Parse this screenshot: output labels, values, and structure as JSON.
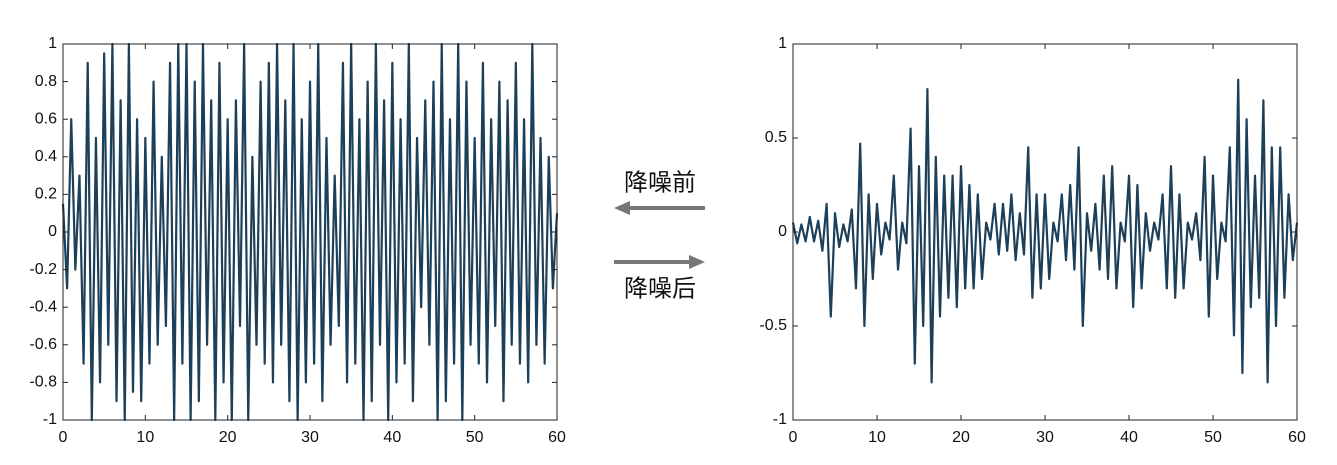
{
  "chart_data": [
    {
      "type": "line",
      "color": "#1c3f5a",
      "x": [
        0,
        0.5,
        1,
        1.5,
        2,
        2.5,
        3,
        3.5,
        4,
        4.5,
        5,
        5.5,
        6,
        6.5,
        7,
        7.5,
        8,
        8.5,
        9,
        9.5,
        10,
        10.5,
        11,
        11.5,
        12,
        12.5,
        13,
        13.5,
        14,
        14.5,
        15,
        15.5,
        16,
        16.5,
        17,
        17.5,
        18,
        18.5,
        19,
        19.5,
        20,
        20.5,
        21,
        21.5,
        22,
        22.5,
        23,
        23.5,
        24,
        24.5,
        25,
        25.5,
        26,
        26.5,
        27,
        27.5,
        28,
        28.5,
        29,
        29.5,
        30,
        30.5,
        31,
        31.5,
        32,
        32.5,
        33,
        33.5,
        34,
        34.5,
        35,
        35.5,
        36,
        36.5,
        37,
        37.5,
        38,
        38.5,
        39,
        39.5,
        40,
        40.5,
        41,
        41.5,
        42,
        42.5,
        43,
        43.5,
        44,
        44.5,
        45,
        45.5,
        46,
        46.5,
        47,
        47.5,
        48,
        48.5,
        49,
        49.5,
        50,
        50.5,
        51,
        51.5,
        52,
        52.5,
        53,
        53.5,
        54,
        54.5,
        55,
        55.5,
        56,
        56.5,
        57,
        57.5,
        58,
        58.5,
        59,
        59.5,
        60
      ],
      "values": [
        0.15,
        -0.3,
        0.6,
        -0.2,
        0.3,
        -0.7,
        0.9,
        -1,
        0.5,
        -0.8,
        0.95,
        -0.6,
        1,
        -0.9,
        0.7,
        -1,
        1,
        -0.85,
        0.6,
        -0.9,
        0.5,
        -0.7,
        0.8,
        -0.6,
        0.4,
        -0.5,
        0.9,
        -1,
        1,
        -0.7,
        1,
        -1,
        0.8,
        -0.9,
        1,
        -0.6,
        0.7,
        -1,
        0.9,
        -0.8,
        0.6,
        -1,
        0.7,
        -0.5,
        1,
        -1,
        0.4,
        -0.6,
        0.8,
        -0.7,
        0.9,
        -0.8,
        1,
        -0.6,
        0.7,
        -0.9,
        1,
        -1,
        0.6,
        -0.8,
        0.8,
        -0.7,
        1,
        -0.9,
        0.5,
        -0.6,
        0.3,
        -0.5,
        0.9,
        -0.8,
        1,
        -0.7,
        0.6,
        -1,
        0.8,
        -0.9,
        1,
        -0.6,
        0.7,
        -1,
        0.9,
        -0.8,
        0.6,
        -0.7,
        1,
        -0.9,
        0.5,
        -0.4,
        0.7,
        -0.6,
        0.8,
        -1,
        1,
        -0.9,
        0.6,
        -0.7,
        1,
        -1,
        0.8,
        -0.6,
        0.5,
        -0.7,
        0.9,
        -0.8,
        0.6,
        -0.5,
        0.8,
        -0.9,
        0.7,
        -0.6,
        0.9,
        -0.7,
        0.6,
        -0.8,
        1,
        -0.6,
        0.5,
        -0.7,
        0.4,
        -0.3,
        0.1
      ],
      "xlim": [
        0,
        60
      ],
      "xticks": [
        0,
        10,
        20,
        30,
        40,
        50,
        60
      ],
      "ylim": [
        -1,
        1
      ],
      "yticks": [
        -1,
        -0.8,
        -0.6,
        -0.4,
        -0.2,
        0,
        0.2,
        0.4,
        0.6,
        0.8,
        1
      ]
    },
    {
      "type": "line",
      "color": "#1c3f5a",
      "x": [
        0,
        0.5,
        1,
        1.5,
        2,
        2.5,
        3,
        3.5,
        4,
        4.5,
        5,
        5.5,
        6,
        6.5,
        7,
        7.5,
        8,
        8.5,
        9,
        9.5,
        10,
        10.5,
        11,
        11.5,
        12,
        12.5,
        13,
        13.5,
        14,
        14.5,
        15,
        15.5,
        16,
        16.5,
        17,
        17.5,
        18,
        18.5,
        19,
        19.5,
        20,
        20.5,
        21,
        21.5,
        22,
        22.5,
        23,
        23.5,
        24,
        24.5,
        25,
        25.5,
        26,
        26.5,
        27,
        27.5,
        28,
        28.5,
        29,
        29.5,
        30,
        30.5,
        31,
        31.5,
        32,
        32.5,
        33,
        33.5,
        34,
        34.5,
        35,
        35.5,
        36,
        36.5,
        37,
        37.5,
        38,
        38.5,
        39,
        39.5,
        40,
        40.5,
        41,
        41.5,
        42,
        42.5,
        43,
        43.5,
        44,
        44.5,
        45,
        45.5,
        46,
        46.5,
        47,
        47.5,
        48,
        48.5,
        49,
        49.5,
        50,
        50.5,
        51,
        51.5,
        52,
        52.5,
        53,
        53.5,
        54,
        54.5,
        55,
        55.5,
        56,
        56.5,
        57,
        57.5,
        58,
        58.5,
        59,
        59.5,
        60
      ],
      "values": [
        0.05,
        -0.06,
        0.04,
        -0.05,
        0.08,
        -0.05,
        0.06,
        -0.1,
        0.15,
        -0.45,
        0.1,
        -0.08,
        0.04,
        -0.05,
        0.12,
        -0.3,
        0.47,
        -0.5,
        0.2,
        -0.25,
        0.15,
        -0.12,
        0.05,
        -0.04,
        0.3,
        -0.2,
        0.05,
        -0.06,
        0.55,
        -0.7,
        0.35,
        -0.5,
        0.76,
        -0.8,
        0.4,
        -0.45,
        0.3,
        -0.35,
        0.3,
        -0.4,
        0.35,
        -0.3,
        0.25,
        -0.3,
        0.2,
        -0.25,
        0.05,
        -0.04,
        0.15,
        -0.12,
        0.15,
        -0.1,
        0.2,
        -0.15,
        0.1,
        -0.12,
        0.45,
        -0.35,
        0.2,
        -0.3,
        0.2,
        -0.25,
        0.05,
        -0.05,
        0.2,
        -0.15,
        0.25,
        -0.2,
        0.45,
        -0.5,
        0.1,
        -0.1,
        0.15,
        -0.2,
        0.3,
        -0.25,
        0.35,
        -0.3,
        0.05,
        -0.05,
        0.3,
        -0.4,
        0.25,
        -0.3,
        0.1,
        -0.1,
        0.05,
        -0.04,
        0.2,
        -0.3,
        0.35,
        -0.35,
        0.2,
        -0.3,
        0.05,
        -0.04,
        0.1,
        -0.15,
        0.4,
        -0.45,
        0.3,
        -0.25,
        0.05,
        -0.05,
        0.45,
        -0.55,
        0.81,
        -0.75,
        0.6,
        -0.4,
        0.3,
        -0.35,
        0.7,
        -0.8,
        0.45,
        -0.5,
        0.45,
        -0.35,
        0.2,
        -0.15,
        0.05
      ],
      "xlim": [
        0,
        60
      ],
      "xticks": [
        0,
        10,
        20,
        30,
        40,
        50,
        60
      ],
      "ylim": [
        -1,
        1
      ],
      "yticks": [
        -1,
        -0.5,
        0,
        0.5,
        1
      ]
    }
  ],
  "annotations": [
    "降噪前",
    "降噪后"
  ]
}
